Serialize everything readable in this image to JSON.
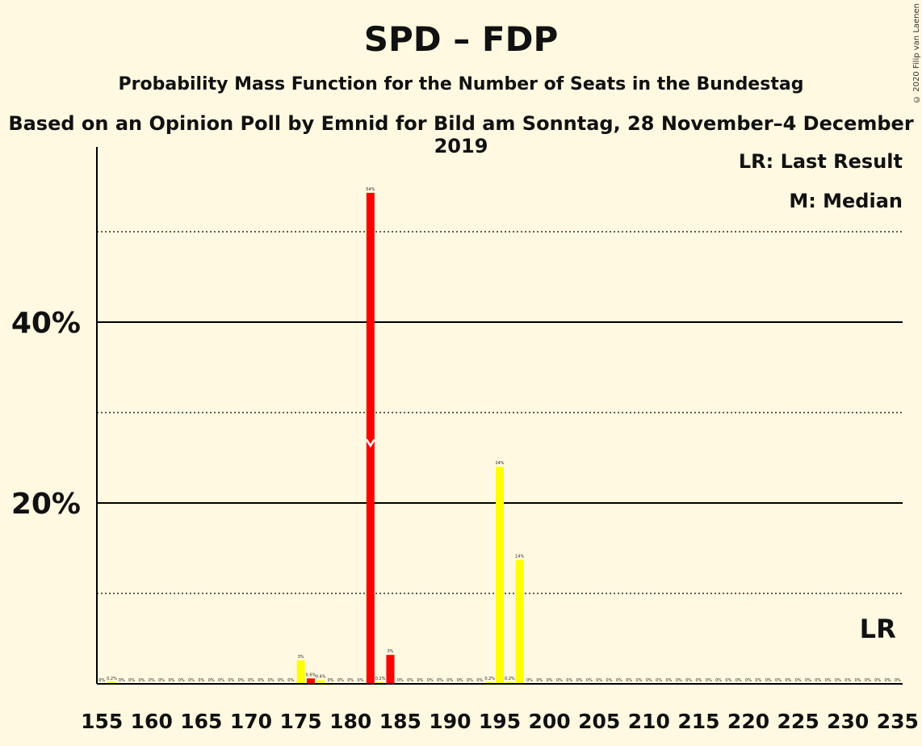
{
  "chart_data": {
    "type": "bar",
    "title": "SPD – FDP",
    "subtitle": "Probability Mass Function for the Number of Seats in the Bundestag",
    "source_note": "Based on an Opinion Poll by Emnid for Bild am Sonntag, 28 November–4 December 2019",
    "copyright": "© 2020 Filip van Laenen",
    "legend": {
      "last_result": "LR: Last Result",
      "median": "M: Median",
      "placement": "top-right"
    },
    "ylim": [
      0,
      59
    ],
    "y_ticks": [
      {
        "value": 20,
        "label": "20%"
      },
      {
        "value": 40,
        "label": "40%"
      }
    ],
    "y_minor_gridlines": [
      10,
      30,
      50
    ],
    "x_first_seat": 155,
    "x_last_seat": 235,
    "x_tick_labels": [
      "155",
      "160",
      "165",
      "170",
      "175",
      "180",
      "185",
      "190",
      "195",
      "200",
      "205",
      "210",
      "215",
      "220",
      "225",
      "230",
      "235"
    ],
    "x_tick_seats": [
      155,
      160,
      165,
      170,
      175,
      180,
      185,
      190,
      195,
      200,
      205,
      210,
      215,
      220,
      225,
      230,
      235
    ],
    "median_seat": 182,
    "median_marker_value": 26.5,
    "last_result_seat": 233,
    "last_result_label": "LR",
    "colors": {
      "highlight": "#ff0000",
      "default": "#ffff00",
      "grid": "#000000",
      "background": "#fff9e1"
    },
    "highlight_seats": [
      176,
      182,
      184
    ],
    "values": [
      {
        "seat": 155,
        "value": 0,
        "label": "0%"
      },
      {
        "seat": 156,
        "value": 0.2,
        "label": "0.2%"
      },
      {
        "seat": 157,
        "value": 0,
        "label": "0%"
      },
      {
        "seat": 158,
        "value": 0,
        "label": "0%"
      },
      {
        "seat": 159,
        "value": 0,
        "label": "0%"
      },
      {
        "seat": 160,
        "value": 0,
        "label": "0%"
      },
      {
        "seat": 161,
        "value": 0,
        "label": "0%"
      },
      {
        "seat": 162,
        "value": 0,
        "label": "0%"
      },
      {
        "seat": 163,
        "value": 0,
        "label": "0%"
      },
      {
        "seat": 164,
        "value": 0,
        "label": "0%"
      },
      {
        "seat": 165,
        "value": 0,
        "label": "0%"
      },
      {
        "seat": 166,
        "value": 0,
        "label": "0%"
      },
      {
        "seat": 167,
        "value": 0,
        "label": "0%"
      },
      {
        "seat": 168,
        "value": 0,
        "label": "0%"
      },
      {
        "seat": 169,
        "value": 0,
        "label": "0%"
      },
      {
        "seat": 170,
        "value": 0,
        "label": "0%"
      },
      {
        "seat": 171,
        "value": 0,
        "label": "0%"
      },
      {
        "seat": 172,
        "value": 0,
        "label": "0%"
      },
      {
        "seat": 173,
        "value": 0,
        "label": "0%"
      },
      {
        "seat": 174,
        "value": 0,
        "label": "0%"
      },
      {
        "seat": 175,
        "value": 2.6,
        "label": "3%"
      },
      {
        "seat": 176,
        "value": 0.6,
        "label": "0.6%"
      },
      {
        "seat": 177,
        "value": 0.4,
        "label": "0.4%"
      },
      {
        "seat": 178,
        "value": 0,
        "label": "0%"
      },
      {
        "seat": 179,
        "value": 0,
        "label": "0%"
      },
      {
        "seat": 180,
        "value": 0,
        "label": "0%"
      },
      {
        "seat": 181,
        "value": 0,
        "label": "0%"
      },
      {
        "seat": 182,
        "value": 54.3,
        "label": "54%"
      },
      {
        "seat": 183,
        "value": 0.2,
        "label": "0.2%"
      },
      {
        "seat": 184,
        "value": 3.2,
        "label": "3%"
      },
      {
        "seat": 185,
        "value": 0,
        "label": "0%"
      },
      {
        "seat": 186,
        "value": 0,
        "label": "0%"
      },
      {
        "seat": 187,
        "value": 0,
        "label": "0%"
      },
      {
        "seat": 188,
        "value": 0,
        "label": "0%"
      },
      {
        "seat": 189,
        "value": 0,
        "label": "0%"
      },
      {
        "seat": 190,
        "value": 0,
        "label": "0%"
      },
      {
        "seat": 191,
        "value": 0,
        "label": "0%"
      },
      {
        "seat": 192,
        "value": 0,
        "label": "0%"
      },
      {
        "seat": 193,
        "value": 0,
        "label": "0%"
      },
      {
        "seat": 194,
        "value": 0.2,
        "label": "0.2%"
      },
      {
        "seat": 195,
        "value": 24,
        "label": "24%"
      },
      {
        "seat": 196,
        "value": 0.2,
        "label": "0.2%"
      },
      {
        "seat": 197,
        "value": 13.7,
        "label": "14%"
      },
      {
        "seat": 198,
        "value": 0,
        "label": "0%"
      },
      {
        "seat": 199,
        "value": 0,
        "label": "0%"
      },
      {
        "seat": 200,
        "value": 0,
        "label": "0%"
      },
      {
        "seat": 201,
        "value": 0,
        "label": "0%"
      },
      {
        "seat": 202,
        "value": 0,
        "label": "0%"
      },
      {
        "seat": 203,
        "value": 0,
        "label": "0%"
      },
      {
        "seat": 204,
        "value": 0,
        "label": "0%"
      },
      {
        "seat": 205,
        "value": 0,
        "label": "0%"
      },
      {
        "seat": 206,
        "value": 0,
        "label": "0%"
      },
      {
        "seat": 207,
        "value": 0,
        "label": "0%"
      },
      {
        "seat": 208,
        "value": 0,
        "label": "0%"
      },
      {
        "seat": 209,
        "value": 0,
        "label": "0%"
      },
      {
        "seat": 210,
        "value": 0,
        "label": "0%"
      },
      {
        "seat": 211,
        "value": 0,
        "label": "0%"
      },
      {
        "seat": 212,
        "value": 0,
        "label": "0%"
      },
      {
        "seat": 213,
        "value": 0,
        "label": "0%"
      },
      {
        "seat": 214,
        "value": 0,
        "label": "0%"
      },
      {
        "seat": 215,
        "value": 0,
        "label": "0%"
      },
      {
        "seat": 216,
        "value": 0,
        "label": "0%"
      },
      {
        "seat": 217,
        "value": 0,
        "label": "0%"
      },
      {
        "seat": 218,
        "value": 0,
        "label": "0%"
      },
      {
        "seat": 219,
        "value": 0,
        "label": "0%"
      },
      {
        "seat": 220,
        "value": 0,
        "label": "0%"
      },
      {
        "seat": 221,
        "value": 0,
        "label": "0%"
      },
      {
        "seat": 222,
        "value": 0,
        "label": "0%"
      },
      {
        "seat": 223,
        "value": 0,
        "label": "0%"
      },
      {
        "seat": 224,
        "value": 0,
        "label": "0%"
      },
      {
        "seat": 225,
        "value": 0,
        "label": "0%"
      },
      {
        "seat": 226,
        "value": 0,
        "label": "0%"
      },
      {
        "seat": 227,
        "value": 0,
        "label": "0%"
      },
      {
        "seat": 228,
        "value": 0,
        "label": "0%"
      },
      {
        "seat": 229,
        "value": 0,
        "label": "0%"
      },
      {
        "seat": 230,
        "value": 0,
        "label": "0%"
      },
      {
        "seat": 231,
        "value": 0,
        "label": "0%"
      },
      {
        "seat": 232,
        "value": 0,
        "label": "0%"
      },
      {
        "seat": 233,
        "value": 0,
        "label": "0%"
      },
      {
        "seat": 234,
        "value": 0,
        "label": "0%"
      },
      {
        "seat": 235,
        "value": 0,
        "label": "0%"
      }
    ]
  }
}
